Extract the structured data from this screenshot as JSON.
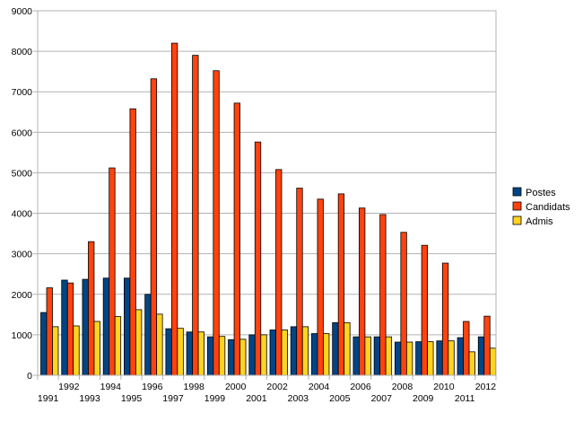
{
  "chart_data": {
    "type": "bar",
    "categories": [
      "1991",
      "1992",
      "1993",
      "1994",
      "1995",
      "1996",
      "1997",
      "1998",
      "1999",
      "2000",
      "2001",
      "2002",
      "2003",
      "2004",
      "2005",
      "2006",
      "2007",
      "2008",
      "2009",
      "2010",
      "2011",
      "2012"
    ],
    "series": [
      {
        "name": "Postes",
        "color": "#004586",
        "values": [
          1550,
          2350,
          2370,
          2400,
          2400,
          2000,
          1150,
          1070,
          950,
          880,
          1000,
          1120,
          1200,
          1030,
          1300,
          950,
          950,
          820,
          830,
          850,
          930,
          950
        ]
      },
      {
        "name": "Candidats",
        "color": "#ff420e",
        "values": [
          2160,
          2280,
          3300,
          5120,
          6580,
          7320,
          8200,
          7900,
          7520,
          6720,
          5760,
          5080,
          4620,
          4350,
          4480,
          4130,
          3970,
          3530,
          3210,
          2770,
          1330,
          1460
        ]
      },
      {
        "name": "Admis",
        "color": "#ffd320",
        "values": [
          1200,
          1220,
          1330,
          1450,
          1620,
          1510,
          1160,
          1070,
          960,
          890,
          1000,
          1120,
          1200,
          1030,
          1300,
          950,
          950,
          820,
          830,
          850,
          580,
          670
        ]
      }
    ],
    "title": "",
    "xlabel": "",
    "ylabel": "",
    "ylim": [
      0,
      9000
    ],
    "yticks": [
      "0",
      "1000",
      "2000",
      "3000",
      "4000",
      "5000",
      "6000",
      "7000",
      "8000",
      "9000"
    ],
    "grid": true,
    "legend_position": "right"
  }
}
